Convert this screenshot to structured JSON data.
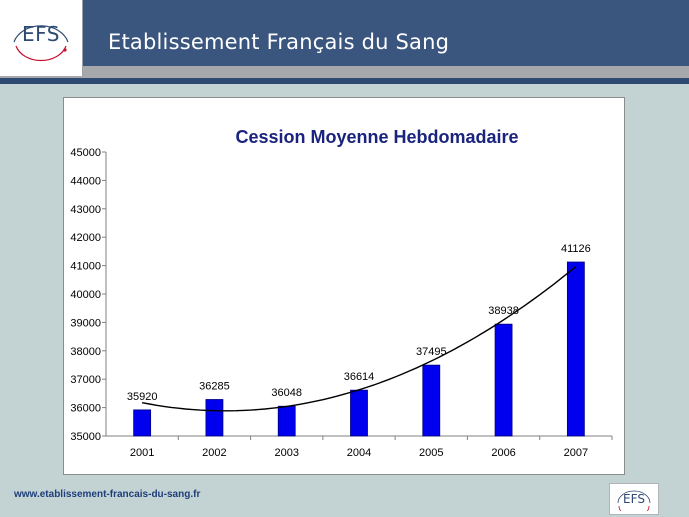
{
  "header": {
    "logo_text": "EFS",
    "title": "Etablissement Français du Sang"
  },
  "footer": {
    "url": "www.etablissement-francais-du-sang.fr",
    "logo_text": "EFS"
  },
  "colors": {
    "header_blue": "#3a567f",
    "bar_fill": "#0000ee",
    "title_text": "#1a237e"
  },
  "chart_data": {
    "type": "bar",
    "title": "Cession Moyenne Hebdomadaire",
    "categories": [
      "2001",
      "2002",
      "2003",
      "2004",
      "2005",
      "2006",
      "2007"
    ],
    "series": [
      {
        "values": [
          35920,
          36285,
          36048,
          36614,
          37495,
          38938,
          41126
        ]
      }
    ],
    "data_labels": [
      "35920",
      "36285",
      "36048",
      "36614",
      "37495",
      "38938",
      "41126"
    ],
    "ylim": [
      35000,
      45000
    ],
    "yticks": [
      "35000",
      "36000",
      "37000",
      "38000",
      "39000",
      "40000",
      "41000",
      "42000",
      "43000",
      "44000",
      "45000"
    ],
    "trendline": {
      "type": "polynomial",
      "shown": true
    },
    "xlabel": "",
    "ylabel": "",
    "grid": false,
    "legend": "none"
  }
}
